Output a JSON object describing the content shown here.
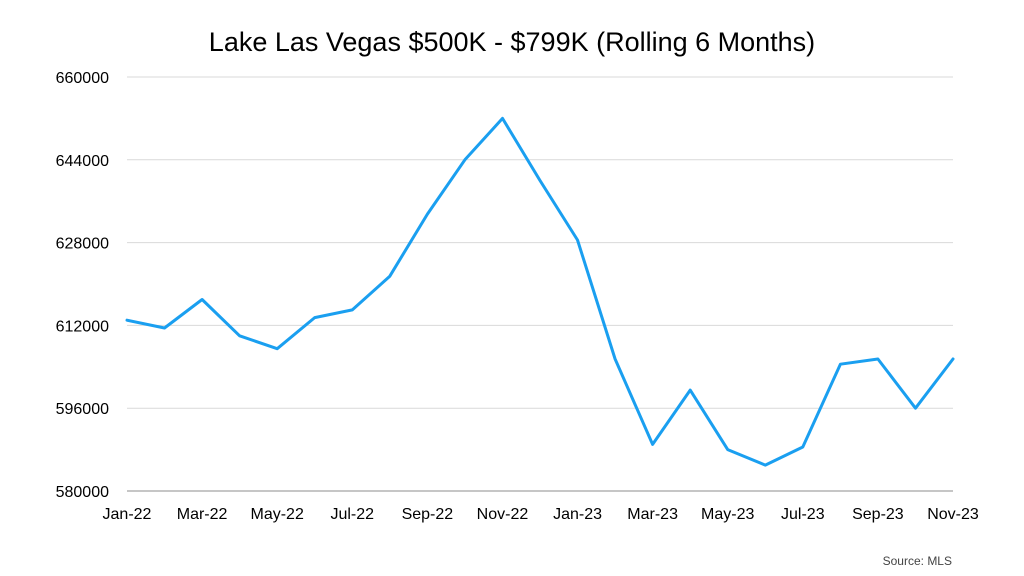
{
  "chart_data": {
    "type": "line",
    "title": "Lake Las Vegas $500K - $799K (Rolling 6 Months)",
    "xlabel": "",
    "ylabel": "",
    "source": "Source: MLS",
    "categories": [
      "Jan-22",
      "Feb-22",
      "Mar-22",
      "Apr-22",
      "May-22",
      "Jun-22",
      "Jul-22",
      "Aug-22",
      "Sep-22",
      "Oct-22",
      "Nov-22",
      "Dec-22",
      "Jan-23",
      "Feb-23",
      "Mar-23",
      "Apr-23",
      "May-23",
      "Jun-23",
      "Jul-23",
      "Aug-23",
      "Sep-23",
      "Oct-23",
      "Nov-23"
    ],
    "x_tick_labels": [
      "Jan-22",
      "Mar-22",
      "May-22",
      "Jul-22",
      "Sep-22",
      "Nov-22",
      "Jan-23",
      "Mar-23",
      "May-23",
      "Jul-23",
      "Sep-23",
      "Nov-23"
    ],
    "series": [
      {
        "values": [
          613000,
          611500,
          617000,
          610000,
          607500,
          613500,
          615000,
          621500,
          633500,
          644000,
          652000,
          640000,
          628500,
          605500,
          589000,
          599500,
          588000,
          585000,
          588500,
          604500,
          605500,
          596000,
          605500
        ],
        "color": "#1a9ff0"
      }
    ],
    "ylim": [
      580000,
      660000
    ],
    "y_ticks": [
      580000,
      596000,
      612000,
      628000,
      644000,
      660000
    ],
    "y_tick_labels": [
      "580000",
      "596000",
      "612000",
      "628000",
      "644000",
      "660000"
    ],
    "grid": true,
    "legend": "none"
  }
}
